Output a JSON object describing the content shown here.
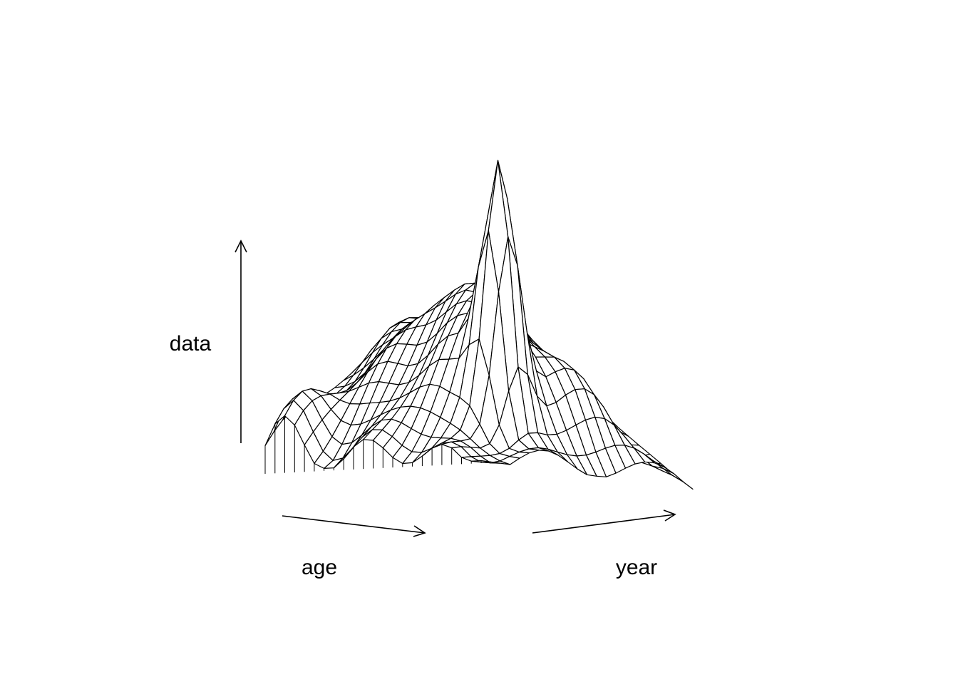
{
  "chart_data": {
    "type": "surface",
    "xlabel": "age",
    "ylabel": "year",
    "zlabel": "data",
    "grid": false,
    "legend": false,
    "line_color": "#000000",
    "background": "#ffffff"
  }
}
